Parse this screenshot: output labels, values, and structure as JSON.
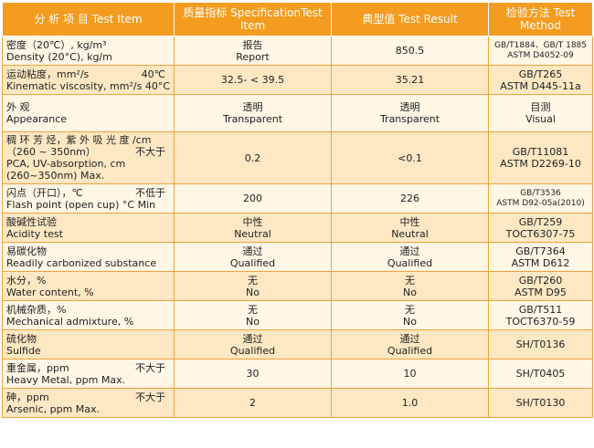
{
  "header": {
    "item_cn": "分 析 项 目",
    "item_en": "Test Item",
    "spec_cn": "质量指标",
    "spec_en": "SpecificationTest Item",
    "result_cn": "典型值",
    "result_en": "Test Result",
    "method_cn": "检验方法",
    "method_en": "Test Method"
  },
  "rows": [
    {
      "item_cn": "密度（20℃）, kg/m³",
      "item_en": "Density (20°C), kg/m",
      "spec_cn": "报告",
      "spec_en": "Report",
      "result_cn": "850.5",
      "result_en": "",
      "method_1": "GB/T1884、GB/T 1885",
      "method_2": "ASTM D4052-09"
    },
    {
      "item_cn": "运动粘度，mm²/s",
      "item_cn_right": "40℃",
      "item_en": "Kinematic viscosity, mm²/s 40°C",
      "spec_cn": "32.5- < 39.5",
      "spec_en": "",
      "result_cn": "35.21",
      "result_en": "",
      "method_1": "GB/T265",
      "method_2": "ASTM D445-11a"
    },
    {
      "item_cn": "外 观",
      "item_en": "Appearance",
      "spec_cn": "透明",
      "spec_en": "Transparent",
      "result_cn": "透明",
      "result_en": "Transparent",
      "method_1": "目测",
      "method_2": "Visual"
    },
    {
      "item_cn": "稠 环 芳 烃，紫 外 吸 光 度 /cm",
      "item_cn2": "（260 ~ 350nm）",
      "item_cn2_right": "不大于",
      "item_en": "PCA, UV-absorption, cm",
      "item_en2": "(260~350nm) Max.",
      "spec_cn": "0.2",
      "spec_en": "",
      "result_cn": "<0.1",
      "result_en": "",
      "method_1": "GB/T11081",
      "method_2": "ASTM D2269-10"
    },
    {
      "item_cn": "闪点（开口），℃",
      "item_cn_right": "不低于",
      "item_en": "Flash point (open cup) °C Min",
      "spec_cn": "200",
      "spec_en": "",
      "result_cn": "226",
      "result_en": "",
      "method_1": "GB/T3536",
      "method_2": "ASTM D92-05a(2010)"
    },
    {
      "item_cn": "酸碱性试验",
      "item_en": "Acidity test",
      "spec_cn": "中性",
      "spec_en": "Neutral",
      "result_cn": "中性",
      "result_en": "Neutral",
      "method_1": "GB/T259",
      "method_2": "TOCT6307-75"
    },
    {
      "item_cn": "易碳化物",
      "item_en": "Readily carbonized substance",
      "spec_cn": "通过",
      "spec_en": "Qualified",
      "result_cn": "通过",
      "result_en": "Qualified",
      "method_1": "GB/T7364",
      "method_2": "ASTM D612"
    },
    {
      "item_cn": "水分，%",
      "item_en": "Water content, %",
      "spec_cn": "无",
      "spec_en": "No",
      "result_cn": "无",
      "result_en": "No",
      "method_1": "GB/T260",
      "method_2": "ASTM D95"
    },
    {
      "item_cn": "机械杂质，%",
      "item_en": "Mechanical admixture, %",
      "spec_cn": "无",
      "spec_en": "No",
      "result_cn": "无",
      "result_en": "No",
      "method_1": "GB/T511",
      "method_2": "TOCT6370-59"
    },
    {
      "item_cn": "硫化物",
      "item_en": "Sulfide",
      "spec_cn": "通过",
      "spec_en": "Qualified",
      "result_cn": "通过",
      "result_en": "Qualified",
      "method_1": "SH/T0136",
      "method_2": ""
    },
    {
      "item_cn": "重金属，ppm",
      "item_cn_right": "不大于",
      "item_en": "Heavy Metal, ppm Max.",
      "spec_cn": "30",
      "spec_en": "",
      "result_cn": "10",
      "result_en": "",
      "method_1": "SH/T0405",
      "method_2": ""
    },
    {
      "item_cn": "砷，ppm",
      "item_cn_right": "不大于",
      "item_en": "Arsenic, ppm Max.",
      "spec_cn": "2",
      "spec_en": "",
      "result_cn": "1.0",
      "result_en": "",
      "method_1": "SH/T0130",
      "method_2": ""
    }
  ]
}
